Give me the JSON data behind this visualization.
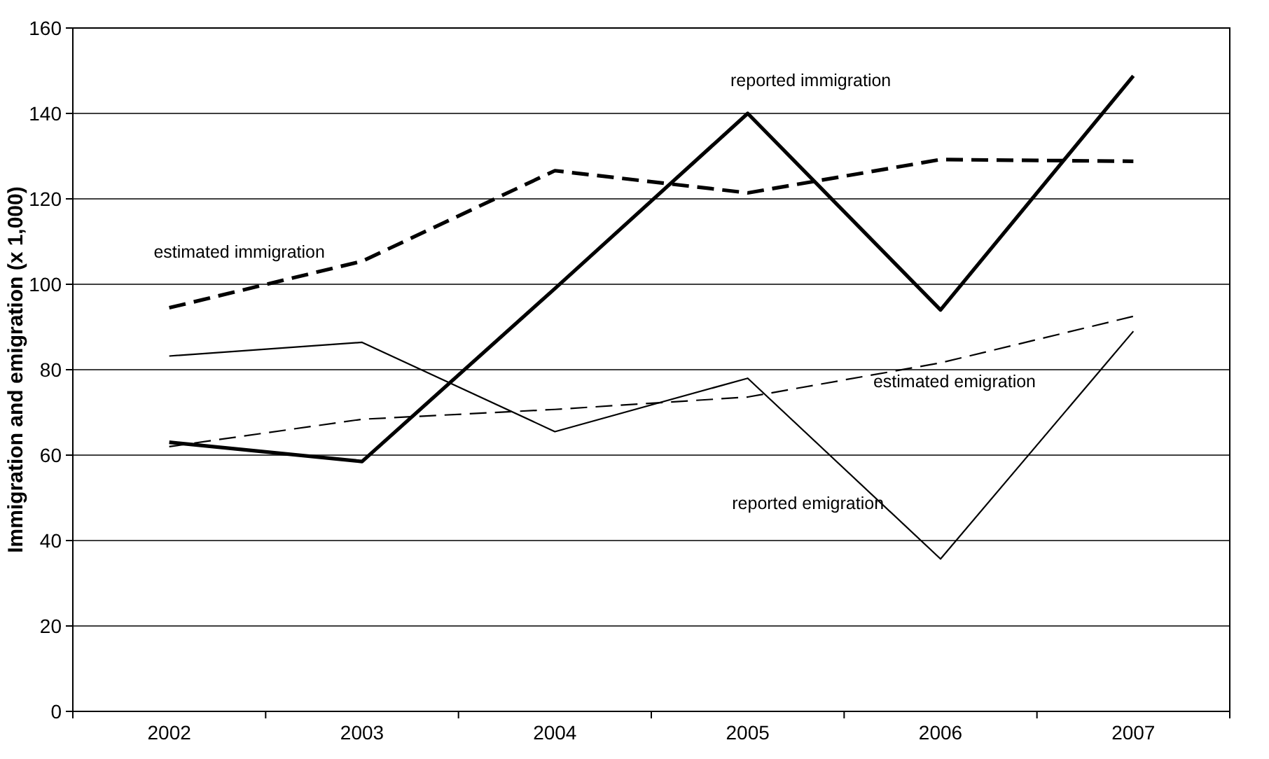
{
  "chart_data": {
    "type": "line",
    "ylabel": "Immigration and emigration (x 1,000)",
    "categories": [
      "2002",
      "2003",
      "2004",
      "2005",
      "2006",
      "2007"
    ],
    "series": [
      {
        "name": "reported immigration",
        "color": "#000000",
        "line_style": "solid",
        "values": [
          63,
          58.5,
          99,
          140,
          94,
          148.8
        ]
      },
      {
        "name": "estimated immigration",
        "color": "#000000",
        "line_style": "dashed",
        "values": [
          94.5,
          105.4,
          126.6,
          121.4,
          129.2,
          128.8
        ]
      },
      {
        "name": "reported emigration",
        "color": "#000000",
        "line_style": "solid",
        "values": [
          83.2,
          86.4,
          65.5,
          78,
          35.7,
          89
        ]
      },
      {
        "name": "estimated emigration",
        "color": "#000000",
        "line_style": "dashed",
        "values": [
          62,
          68.4,
          70.7,
          73.6,
          81.6,
          92.5
        ]
      }
    ],
    "ylim": [
      0,
      160
    ],
    "yticks": [
      0,
      20,
      40,
      60,
      80,
      100,
      120,
      140,
      160
    ],
    "grid": "y"
  }
}
